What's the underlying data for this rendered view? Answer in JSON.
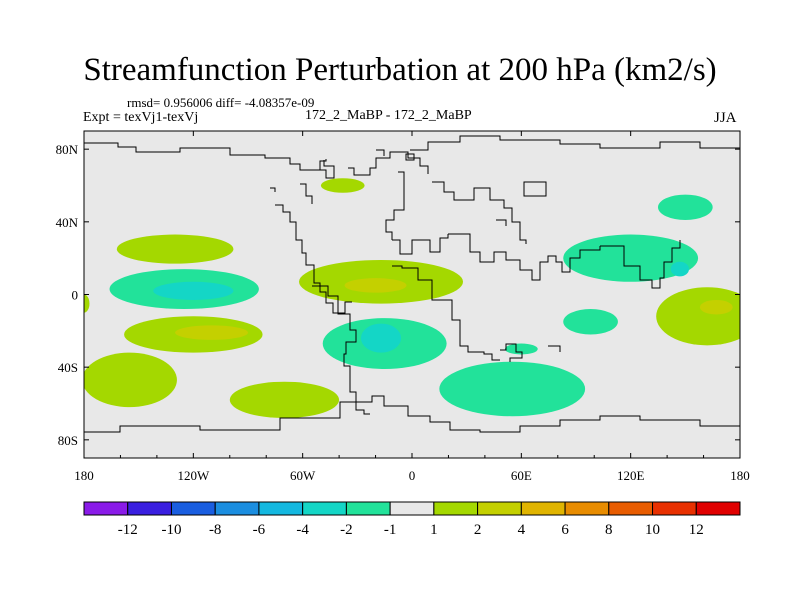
{
  "chart_data": {
    "type": "heatmap",
    "title": "Streamfunction Perturbation at 200 hPa (km2/s)",
    "stats_text": "rmsd= 0.956006 diff= -4.08357e-09",
    "left_label": "Expt = texVj1-texVj",
    "center_label": "172_2_MaBP - 172_2_MaBP",
    "right_label": "JJA",
    "x_range": [
      -180,
      180
    ],
    "y_range": [
      -90,
      90
    ],
    "x_ticks": [
      {
        "value": -180,
        "label": "180"
      },
      {
        "value": -120,
        "label": "120W"
      },
      {
        "value": -60,
        "label": "60W"
      },
      {
        "value": 0,
        "label": "0"
      },
      {
        "value": 60,
        "label": "60E"
      },
      {
        "value": 120,
        "label": "120E"
      },
      {
        "value": 180,
        "label": "180"
      }
    ],
    "y_ticks": [
      {
        "value": 80,
        "label": "80N"
      },
      {
        "value": 40,
        "label": "40N"
      },
      {
        "value": 0,
        "label": "0"
      },
      {
        "value": -40,
        "label": "40S"
      },
      {
        "value": -80,
        "label": "80S"
      }
    ],
    "colorbar": {
      "colors": [
        "#8a1be8",
        "#3a1fe0",
        "#1a5ee0",
        "#1b8ee0",
        "#14b8e0",
        "#14d6c6",
        "#22e29a",
        "#e8e8e8",
        "#a4d800",
        "#c4d000",
        "#e0b400",
        "#e88c00",
        "#e85c00",
        "#e83000",
        "#e00000"
      ],
      "labels": [
        "-12",
        "-10",
        "-8",
        "-6",
        "-4",
        "-2",
        "-1",
        "1",
        "2",
        "4",
        "6",
        "8",
        "10",
        "12"
      ]
    },
    "features": [
      {
        "name": "arctic-positive",
        "level": "1 to 2",
        "lon": -38,
        "lat": 60,
        "rx": 12,
        "ry": 4,
        "color": "#a4d800"
      },
      {
        "name": "eurasia-negative",
        "level": "-1 to -2",
        "lon": 150,
        "lat": 48,
        "rx": 15,
        "ry": 7,
        "color": "#22e29a"
      },
      {
        "name": "north-pacific-positive",
        "level": "1 to 2",
        "lon": -130,
        "lat": 25,
        "rx": 32,
        "ry": 8,
        "color": "#a4d800"
      },
      {
        "name": "tropical-pacific-negative",
        "level": "-1 to -2",
        "lon": -125,
        "lat": 3,
        "rx": 41,
        "ry": 11,
        "color": "#22e29a"
      },
      {
        "name": "tropical-pacific-core",
        "level": "-2 to -4",
        "lon": -120,
        "lat": 2,
        "rx": 22,
        "ry": 5,
        "color": "#14d6c6"
      },
      {
        "name": "south-pacific-positive",
        "level": "1 to 2",
        "lon": -120,
        "lat": -22,
        "rx": 38,
        "ry": 10,
        "color": "#a4d800"
      },
      {
        "name": "south-pacific-core",
        "level": "2 to 4",
        "lon": -110,
        "lat": -21,
        "rx": 20,
        "ry": 4,
        "color": "#c4d000"
      },
      {
        "name": "south-america-positive",
        "level": "1 to 2",
        "lon": -17,
        "lat": 7,
        "rx": 45,
        "ry": 12,
        "color": "#a4d800"
      },
      {
        "name": "south-america-core",
        "level": "2 to 4",
        "lon": -20,
        "lat": 5,
        "rx": 17,
        "ry": 4,
        "color": "#c4d000"
      },
      {
        "name": "atlantic-negative",
        "level": "-1 to -2",
        "lon": -15,
        "lat": -27,
        "rx": 34,
        "ry": 14,
        "color": "#22e29a"
      },
      {
        "name": "atlantic-core",
        "level": "-2 to -4",
        "lon": -17,
        "lat": -24,
        "rx": 11,
        "ry": 8,
        "color": "#14d6c6"
      },
      {
        "name": "indian-ocean-negative",
        "level": "-1 to -2",
        "lon": 98,
        "lat": -15,
        "rx": 15,
        "ry": 7,
        "color": "#22e29a"
      },
      {
        "name": "southern-ocean-negative",
        "level": "-1 to -2",
        "lon": 55,
        "lat": -52,
        "rx": 40,
        "ry": 15,
        "color": "#22e29a"
      },
      {
        "name": "southern-ocean-small",
        "level": "-1 to -2",
        "lon": 60,
        "lat": -30,
        "rx": 9,
        "ry": 3,
        "color": "#22e29a"
      },
      {
        "name": "asia-negative",
        "level": "-1 to -2",
        "lon": 120,
        "lat": 20,
        "rx": 37,
        "ry": 13,
        "color": "#22e29a"
      },
      {
        "name": "asia-core",
        "level": "-2 to -4",
        "lon": 147,
        "lat": 14,
        "rx": 5,
        "ry": 4,
        "color": "#14d6c6"
      },
      {
        "name": "west-pacific-positive",
        "level": "1 to 2",
        "lon": 162,
        "lat": -12,
        "rx": 28,
        "ry": 16,
        "color": "#a4d800"
      },
      {
        "name": "west-pacific-core",
        "level": "2 to 4",
        "lon": 167,
        "lat": -7,
        "rx": 9,
        "ry": 4,
        "color": "#c4d000"
      },
      {
        "name": "south-pacific-southern-positive",
        "level": "1 to 2",
        "lon": -155,
        "lat": -47,
        "rx": 26,
        "ry": 15,
        "color": "#a4d800"
      },
      {
        "name": "southeast-pacific-positive",
        "level": "1 to 2",
        "lon": -70,
        "lat": -58,
        "rx": 30,
        "ry": 10,
        "color": "#a4d800"
      },
      {
        "name": "dateline-edge-positive",
        "level": "1 to 2",
        "lon": -180,
        "lat": -5,
        "rx": 3,
        "ry": 5,
        "color": "#a4d800"
      }
    ]
  }
}
